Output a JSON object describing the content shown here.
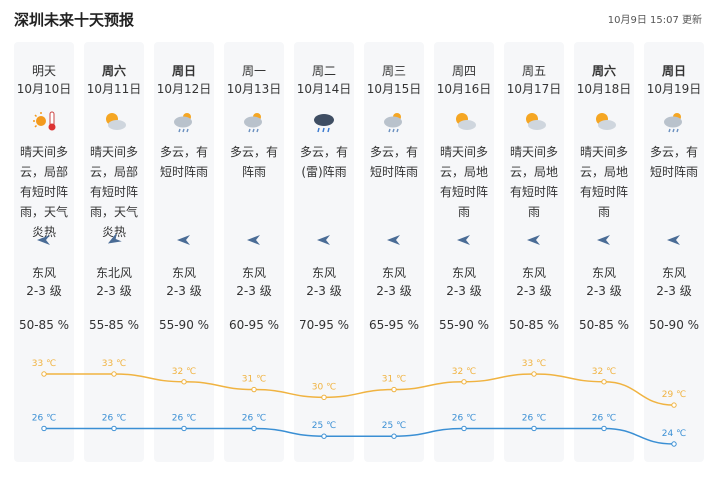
{
  "header": {
    "title": "深圳未来十天预报",
    "updated": "10月9日 15:07 更新"
  },
  "days": [
    {
      "weekday": "明天",
      "date": "10月10日",
      "weather": "晴天间多云，局部有短时阵雨，天气炎热",
      "wind": "东风",
      "level": "2-3 级",
      "humidity": "50-85 %"
    },
    {
      "weekday": "周六",
      "date": "10月11日",
      "weather": "晴天间多云，局部有短时阵雨，天气炎热",
      "wind": "东北风",
      "level": "2-3 级",
      "humidity": "55-85 %"
    },
    {
      "weekday": "周日",
      "date": "10月12日",
      "weather": "多云，有短时阵雨",
      "wind": "东风",
      "level": "2-3 级",
      "humidity": "55-90 %"
    },
    {
      "weekday": "周一",
      "date": "10月13日",
      "weather": "多云，有阵雨",
      "wind": "东风",
      "level": "2-3 级",
      "humidity": "60-95 %"
    },
    {
      "weekday": "周二",
      "date": "10月14日",
      "weather": "多云，有(雷)阵雨",
      "wind": "东风",
      "level": "2-3 级",
      "humidity": "70-95 %"
    },
    {
      "weekday": "周三",
      "date": "10月15日",
      "weather": "多云，有短时阵雨",
      "wind": "东风",
      "level": "2-3 级",
      "humidity": "65-95 %"
    },
    {
      "weekday": "周四",
      "date": "10月16日",
      "weather": "晴天间多云，局地有短时阵雨",
      "wind": "东风",
      "level": "2-3 级",
      "humidity": "55-90 %"
    },
    {
      "weekday": "周五",
      "date": "10月17日",
      "weather": "晴天间多云，局地有短时阵雨",
      "wind": "东风",
      "level": "2-3 级",
      "humidity": "50-85 %"
    },
    {
      "weekday": "周六",
      "date": "10月18日",
      "weather": "晴天间多云，局地有短时阵雨",
      "wind": "东风",
      "level": "2-3 级",
      "humidity": "50-85 %"
    },
    {
      "weekday": "周日",
      "date": "10月19日",
      "weather": "多云，有短时阵雨",
      "wind": "东风",
      "level": "2-3 级",
      "humidity": "50-90 %"
    }
  ],
  "chart_data": {
    "type": "line",
    "series": [
      {
        "color": "#f0b341",
        "values": [
          33,
          33,
          32,
          31,
          30,
          31,
          32,
          33,
          32,
          29
        ],
        "value_labels": [
          "33 ℃",
          "33 ℃",
          "32 ℃",
          "31 ℃",
          "30 ℃",
          "31 ℃",
          "32 ℃",
          "33 ℃",
          "32 ℃",
          "29 ℃"
        ]
      },
      {
        "color": "#3a8fd4",
        "values": [
          26,
          26,
          26,
          26,
          25,
          25,
          26,
          26,
          26,
          24
        ],
        "value_labels": [
          "26 ℃",
          "26 ℃",
          "26 ℃",
          "26 ℃",
          "25 ℃",
          "25 ℃",
          "26 ℃",
          "26 ℃",
          "26 ℃",
          "24 ℃"
        ]
      }
    ]
  }
}
